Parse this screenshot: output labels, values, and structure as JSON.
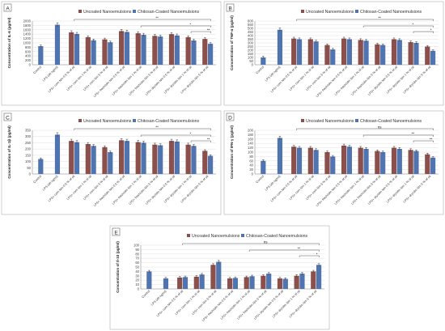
{
  "legend": {
    "uncoated": "Uncoated Nanoemulsions",
    "coated": "Chitosan-Coated Nanoemulsions"
  },
  "colors": {
    "uncoated": "#8B4F4C",
    "coated": "#4F74B0",
    "control": "#4F74B0",
    "error": "#222222",
    "axis": "#8a8a8a",
    "grid": "#d9d9d9",
    "panelBorder": "#b0b0b0",
    "sig": "#444444"
  },
  "categories": [
    "Control",
    "LPS (40 ng/ml)",
    "LPS+ corn Nm 0.5 % of oil",
    "LPS+ corn Nm 1 % of oil",
    "LPS+ corn Nm 5 % of oil",
    "LPS+ fresh/olm Nm 0.5 % of oil",
    "LPS+ fresh/olm Nm 1 % of oil",
    "LPS+ fresh/olm Nm 5 % of oil",
    "LPS+ dry/olm Nm 0.5 % of oil",
    "LPS+ dry/olm Nm 1 % of oil",
    "LPS+ dry/olm Nm 5 % of oil"
  ],
  "chart_data": [
    {
      "type": "bar",
      "panel_label": "A",
      "ylabel": "Concentration of IL-6  (pg/ml)",
      "ylim": [
        0,
        2000
      ],
      "yticks": [
        0,
        200,
        400,
        600,
        800,
        1000,
        1200,
        1400,
        1600,
        1800,
        2000
      ],
      "control": 850,
      "lps": 1830,
      "series": [
        {
          "name": "Uncoated Nanoemulsions",
          "values": [
            1480,
            1260,
            1160,
            1540,
            1440,
            1320,
            1400,
            1260,
            1180
          ]
        },
        {
          "name": "Chitosan-Coated Nanoemulsions",
          "values": [
            1410,
            1120,
            1030,
            1500,
            1370,
            1290,
            1340,
            1110,
            960
          ]
        }
      ],
      "significance": [
        "**",
        "*",
        "**"
      ]
    },
    {
      "type": "bar",
      "panel_label": "B",
      "ylabel": "Concentration of TNF-α (pg/ml)",
      "ylim": [
        0,
        600
      ],
      "yticks": [
        0,
        50,
        100,
        150,
        200,
        250,
        300,
        350,
        400,
        450,
        500,
        550,
        600
      ],
      "control": 100,
      "lps": 480,
      "series": [
        {
          "name": "Uncoated Nanoemulsions",
          "values": [
            360,
            350,
            270,
            360,
            340,
            280,
            350,
            310,
            250
          ]
        },
        {
          "name": "Chitosan-Coated Nanoemulsions",
          "values": [
            350,
            320,
            210,
            350,
            330,
            270,
            340,
            300,
            190
          ]
        }
      ],
      "significance": [
        "**",
        "*",
        "*"
      ]
    },
    {
      "type": "bar",
      "panel_label": "C",
      "ylabel": "Concentration of IL-1β (pg/ml)",
      "ylim": [
        0,
        350
      ],
      "yticks": [
        0,
        50,
        100,
        150,
        200,
        250,
        300,
        350
      ],
      "control": 120,
      "lps": 315,
      "series": [
        {
          "name": "Uncoated Nanoemulsions",
          "values": [
            265,
            240,
            215,
            270,
            255,
            235,
            265,
            235,
            185
          ]
        },
        {
          "name": "Chitosan-Coated Nanoemulsions",
          "values": [
            255,
            225,
            175,
            265,
            250,
            230,
            260,
            225,
            145
          ]
        }
      ],
      "significance": [
        "**",
        "*",
        "**"
      ]
    },
    {
      "type": "bar",
      "panel_label": "D",
      "ylabel": "Concentration of IFN-γ (pg/ml)",
      "ylim": [
        0,
        200
      ],
      "yticks": [
        0,
        20,
        40,
        60,
        80,
        100,
        120,
        140,
        160,
        180,
        200
      ],
      "control": 60,
      "lps": 165,
      "series": [
        {
          "name": "Uncoated Nanoemulsions",
          "values": [
            125,
            120,
            100,
            130,
            120,
            105,
            120,
            110,
            90
          ]
        },
        {
          "name": "Chitosan-Coated Nanoemulsions",
          "values": [
            120,
            110,
            80,
            125,
            115,
            100,
            115,
            105,
            75
          ]
        }
      ],
      "significance": [
        "ns",
        "**",
        "**"
      ]
    },
    {
      "type": "bar",
      "panel_label": "E",
      "ylabel": "Concentration of Il-10  (pg/ml)",
      "ylim": [
        0,
        100
      ],
      "yticks": [
        0,
        10,
        20,
        30,
        40,
        50,
        60,
        70,
        80,
        90,
        100
      ],
      "control": 40,
      "lps": 24,
      "series": [
        {
          "name": "Uncoated Nanoemulsions",
          "values": [
            26,
            28,
            55,
            24,
            27,
            30,
            24,
            30,
            40
          ]
        },
        {
          "name": "Chitosan-Coated Nanoemulsions",
          "values": [
            27,
            33,
            62,
            25,
            29,
            35,
            23,
            35,
            55
          ]
        }
      ],
      "significance": [
        "ns",
        "**",
        "*"
      ]
    }
  ]
}
